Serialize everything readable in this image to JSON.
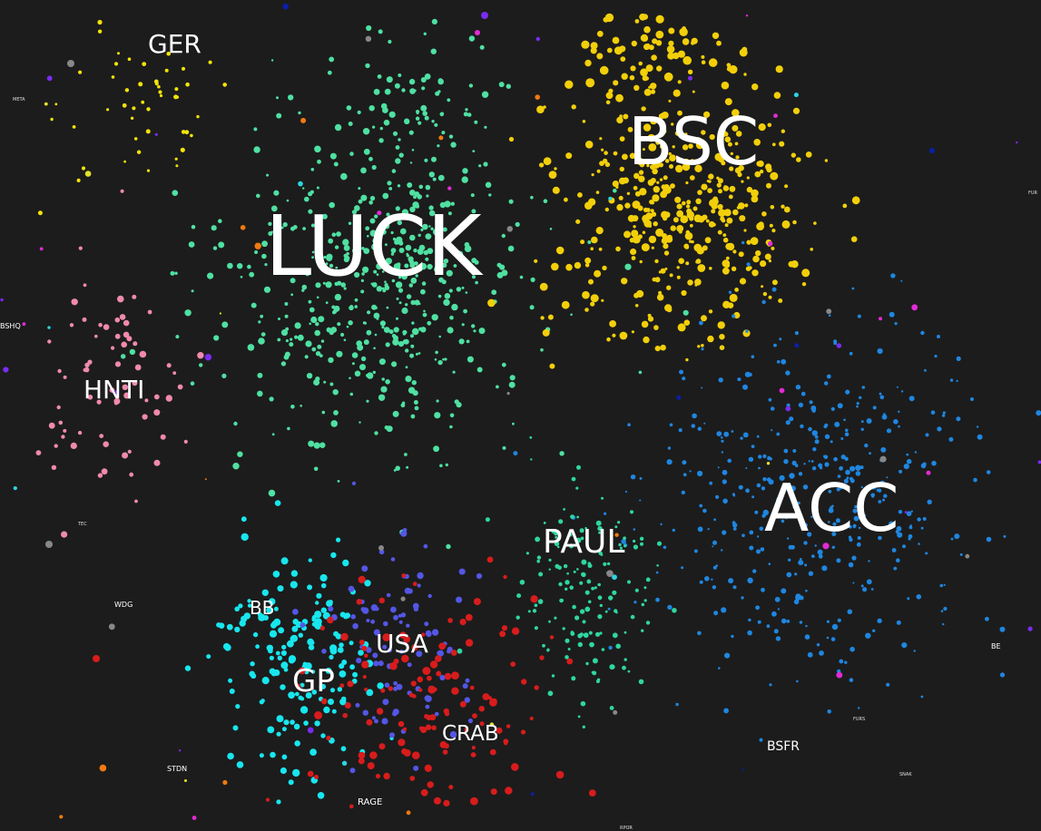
{
  "clusters": [
    {
      "key": "luck",
      "label": "LUCK",
      "color": "#4fe0a2"
    },
    {
      "key": "bsc",
      "label": "BSC",
      "color": "#f2cf0a"
    },
    {
      "key": "acc",
      "label": "ACC",
      "color": "#1f86e0"
    },
    {
      "key": "ger",
      "label": "GER",
      "color": "#f2e30a"
    },
    {
      "key": "hnti",
      "label": "HNTI",
      "color": "#f08aac"
    },
    {
      "key": "paul",
      "label": "PAUL",
      "color": "#2fd6a0"
    },
    {
      "key": "gp",
      "label": "GP",
      "color": "#18e6ee"
    },
    {
      "key": "usa",
      "label": "USA",
      "color": "#5456e6"
    },
    {
      "key": "crab",
      "label": "CRAB",
      "color": "#d81c1c"
    }
  ],
  "labels": {
    "luck": "LUCK",
    "bsc": "BSC",
    "acc": "ACC",
    "ger": "GER",
    "hnti": "HNTI",
    "paul": "PAUL",
    "gp": "GP",
    "usa": "USA",
    "crab": "CRAB",
    "bb": "BB",
    "bsfr": "BSFR",
    "rage": "RAGE",
    "wdg": "WDG",
    "stdn": "STDN",
    "bshq": "BSHQ",
    "meta": "META",
    "tec": "TEC",
    "be": "BE",
    "furs": "FURS",
    "snak": "SNAK",
    "fur": "FUR",
    "rpor": "RPOR"
  },
  "colors": {
    "background": "#1c1c1c",
    "label": "#ffffff"
  }
}
